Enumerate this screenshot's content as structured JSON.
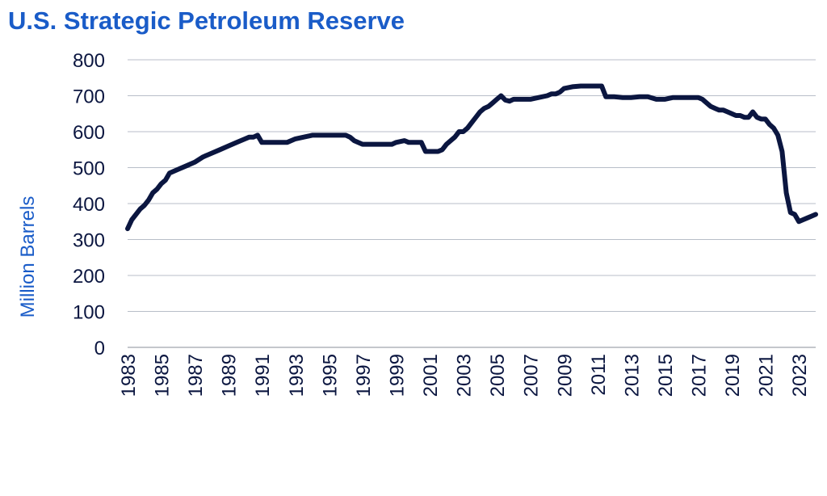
{
  "chart_data": {
    "type": "line",
    "title": "U.S. Strategic Petroleum Reserve",
    "ylabel": "Million Barrels",
    "xlabel": "",
    "ylim": [
      0,
      800
    ],
    "yticks": [
      0,
      100,
      200,
      300,
      400,
      500,
      600,
      700,
      800
    ],
    "xlim": [
      1983,
      2024
    ],
    "xticks": [
      "1983",
      "1985",
      "1987",
      "1989",
      "1991",
      "1993",
      "1995",
      "1997",
      "1999",
      "2001",
      "2003",
      "2005",
      "2007",
      "2009",
      "2011",
      "2013",
      "2015",
      "2017",
      "2019",
      "2021",
      "2023"
    ],
    "grid": true,
    "line_color": "#0b1640",
    "title_color": "#1a5cc8",
    "series": [
      {
        "x": [
          1983.0,
          1983.25,
          1983.5,
          1983.75,
          1984.0,
          1984.25,
          1984.5,
          1984.75,
          1985.0,
          1985.25,
          1985.5,
          1986.0,
          1986.5,
          1987.0,
          1987.5,
          1988.0,
          1988.5,
          1989.0,
          1989.5,
          1990.0,
          1990.25,
          1990.5,
          1990.75,
          1991.0,
          1992.0,
          1992.5,
          1993.0,
          1993.5,
          1994.0,
          1995.0,
          1995.5,
          1996.0,
          1996.25,
          1996.5,
          1997.0,
          1998.0,
          1998.75,
          1999.0,
          1999.5,
          1999.75,
          2000.0,
          2000.5,
          2000.75,
          2001.0,
          2001.5,
          2001.75,
          2002.0,
          2002.25,
          2002.5,
          2002.75,
          2003.0,
          2003.25,
          2003.5,
          2003.75,
          2004.0,
          2004.25,
          2004.5,
          2004.75,
          2005.0,
          2005.25,
          2005.5,
          2005.75,
          2006.0,
          2006.5,
          2007.0,
          2007.5,
          2008.0,
          2008.25,
          2008.5,
          2008.75,
          2009.0,
          2009.5,
          2010.0,
          2010.5,
          2011.0,
          2011.25,
          2011.5,
          2012.0,
          2012.5,
          2013.0,
          2013.5,
          2014.0,
          2014.5,
          2015.0,
          2015.5,
          2016.0,
          2016.5,
          2017.0,
          2017.25,
          2017.5,
          2017.75,
          2018.0,
          2018.25,
          2018.5,
          2018.75,
          2019.0,
          2019.25,
          2019.5,
          2019.75,
          2020.0,
          2020.25,
          2020.5,
          2020.75,
          2021.0,
          2021.25,
          2021.5,
          2021.75,
          2022.0,
          2022.25,
          2022.5,
          2022.75,
          2023.0,
          2023.25,
          2023.5,
          2023.75,
          2024.0
        ],
        "values": [
          330,
          355,
          370,
          385,
          395,
          410,
          430,
          440,
          455,
          465,
          485,
          495,
          505,
          515,
          530,
          540,
          550,
          560,
          570,
          580,
          585,
          585,
          590,
          570,
          570,
          570,
          580,
          585,
          590,
          590,
          590,
          590,
          585,
          575,
          565,
          565,
          565,
          570,
          575,
          570,
          570,
          570,
          545,
          545,
          545,
          550,
          565,
          575,
          585,
          600,
          600,
          610,
          625,
          640,
          655,
          665,
          670,
          680,
          690,
          700,
          688,
          685,
          690,
          690,
          690,
          695,
          700,
          705,
          705,
          710,
          720,
          725,
          727,
          727,
          727,
          727,
          697,
          697,
          695,
          695,
          697,
          697,
          690,
          690,
          695,
          695,
          695,
          695,
          690,
          680,
          670,
          665,
          660,
          660,
          655,
          650,
          645,
          645,
          640,
          640,
          655,
          640,
          635,
          635,
          620,
          610,
          590,
          545,
          430,
          375,
          370,
          350,
          355,
          360,
          365,
          370
        ]
      }
    ]
  }
}
